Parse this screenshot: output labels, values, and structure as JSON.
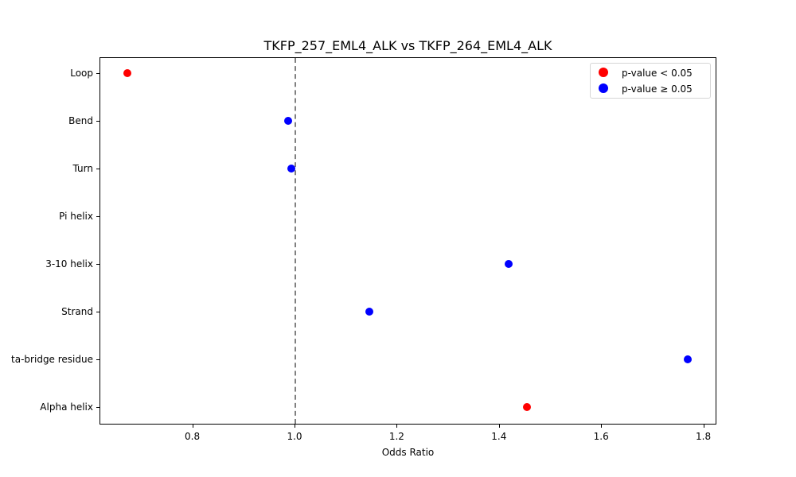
{
  "chart_data": {
    "type": "scatter",
    "title": "TKFP_257_EML4_ALK vs TKFP_264_EML4_ALK",
    "xlabel": "Odds Ratio",
    "ylabel": "",
    "xlim": [
      0.62,
      1.83
    ],
    "xticks": [
      "0.8",
      "1.0",
      "1.2",
      "1.4",
      "1.6",
      "1.8"
    ],
    "reference_line": {
      "x": 1.0,
      "style": "dashed",
      "color": "#808080"
    },
    "categories": [
      "Loop",
      "Bend",
      "Turn",
      "Pi helix",
      "3-10 helix",
      "Strand",
      "Isolated beta-bridge residue",
      "Alpha helix"
    ],
    "visible_category_labels": [
      "Loop",
      "Bend",
      "Turn",
      "Pi helix",
      "3-10 helix",
      "Strand",
      "ta-bridge residue",
      "Alpha helix"
    ],
    "points": [
      {
        "category": "Loop",
        "odds_ratio": 0.673,
        "significant": true,
        "color": "#ff0000"
      },
      {
        "category": "Bend",
        "odds_ratio": 0.988,
        "significant": false,
        "color": "#0000ff"
      },
      {
        "category": "Turn",
        "odds_ratio": 0.994,
        "significant": false,
        "color": "#0000ff"
      },
      {
        "category": "Pi helix",
        "odds_ratio": null,
        "significant": null,
        "color": null
      },
      {
        "category": "3-10 helix",
        "odds_ratio": 1.419,
        "significant": false,
        "color": "#0000ff"
      },
      {
        "category": "Strand",
        "odds_ratio": 1.146,
        "significant": false,
        "color": "#0000ff"
      },
      {
        "category": "Isolated beta-bridge residue",
        "odds_ratio": 1.77,
        "significant": false,
        "color": "#0000ff"
      },
      {
        "category": "Alpha helix",
        "odds_ratio": 1.455,
        "significant": true,
        "color": "#ff0000"
      }
    ],
    "legend": {
      "position": "upper right",
      "entries": [
        {
          "label": "p-value < 0.05",
          "color": "#ff0000"
        },
        {
          "label": "p-value ≥ 0.05",
          "color": "#0000ff"
        }
      ]
    },
    "grid": false
  }
}
